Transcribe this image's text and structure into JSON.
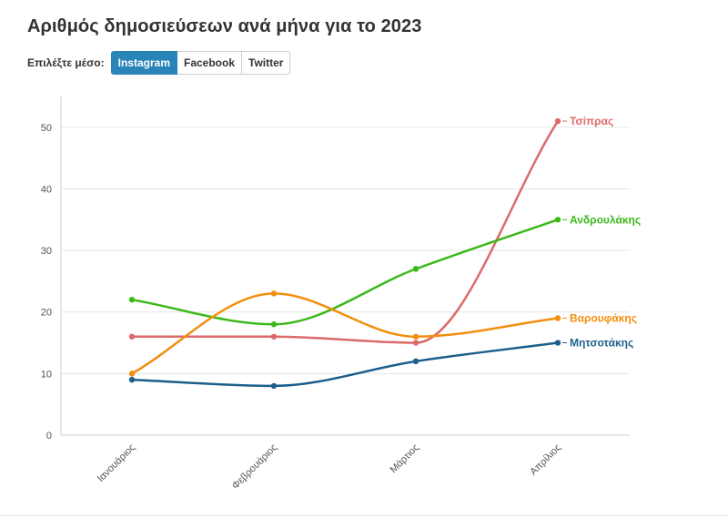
{
  "page": {
    "title": "Αριθμός δημοσιεύσεων ανά μήνα για το 2023"
  },
  "controls": {
    "label": "Επιλέξτε μέσο:",
    "buttons": [
      {
        "label": "Instagram",
        "active": true
      },
      {
        "label": "Facebook",
        "active": false
      },
      {
        "label": "Twitter",
        "active": false
      }
    ]
  },
  "chart_data": {
    "type": "line",
    "title": "Αριθμός δημοσιεύσεων ανά μήνα για το 2023",
    "categories": [
      "Ιανουάριος",
      "Φεβρουάριος",
      "Μάρτιος",
      "Απρίλιος"
    ],
    "ylim": [
      0,
      55
    ],
    "yticks": [
      0,
      10,
      20,
      30,
      40,
      50
    ],
    "grid": true,
    "legend": "end-of-line labels",
    "series": [
      {
        "name": "Τσίπρας",
        "color": "#dc6a6a",
        "values": [
          16,
          16,
          15,
          51
        ]
      },
      {
        "name": "Ανδρουλάκης",
        "color": "#3cb91a",
        "values": [
          22,
          18,
          27,
          35
        ]
      },
      {
        "name": "Βαρουφάκης",
        "color": "#f28f0e",
        "values": [
          10,
          23,
          16,
          19
        ]
      },
      {
        "name": "Μητσοτάκης",
        "color": "#1c5f8c",
        "values": [
          9,
          8,
          12,
          15
        ]
      }
    ]
  }
}
